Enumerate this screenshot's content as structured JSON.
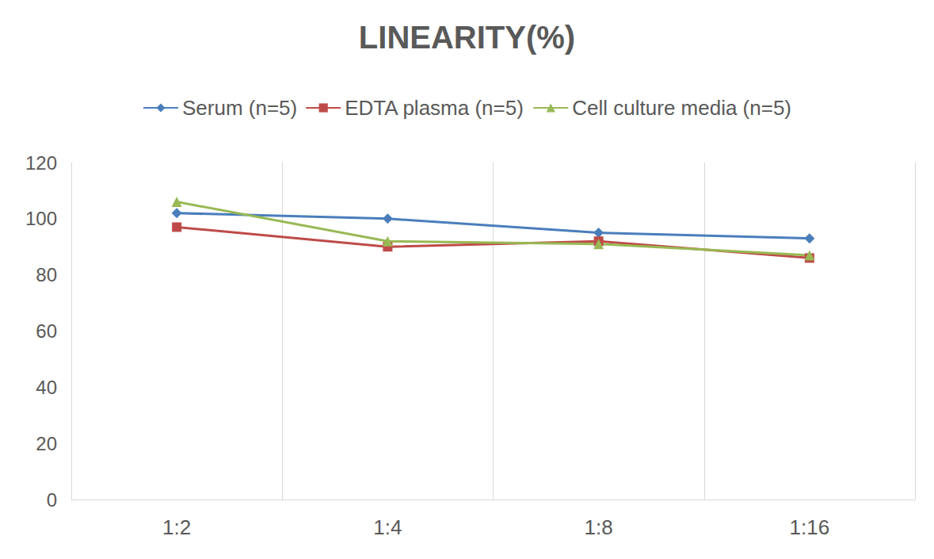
{
  "chart_data": {
    "type": "line",
    "title": "LINEARITY(%)",
    "categories": [
      "1:2",
      "1:4",
      "1:8",
      "1:16"
    ],
    "series": [
      {
        "name": "Serum (n=5)",
        "color": "#4a7ebb",
        "marker": "diamond",
        "values": [
          102,
          100,
          95,
          93
        ]
      },
      {
        "name": "EDTA plasma (n=5)",
        "color": "#be4b48",
        "marker": "square",
        "values": [
          97,
          90,
          92,
          86
        ]
      },
      {
        "name": "Cell culture media (n=5)",
        "color": "#98b954",
        "marker": "triangle",
        "values": [
          106,
          92,
          91,
          87
        ]
      }
    ],
    "ylim": [
      0,
      120
    ],
    "yticks": [
      0,
      20,
      40,
      60,
      80,
      100,
      120
    ],
    "grid": true,
    "legend": "top"
  }
}
